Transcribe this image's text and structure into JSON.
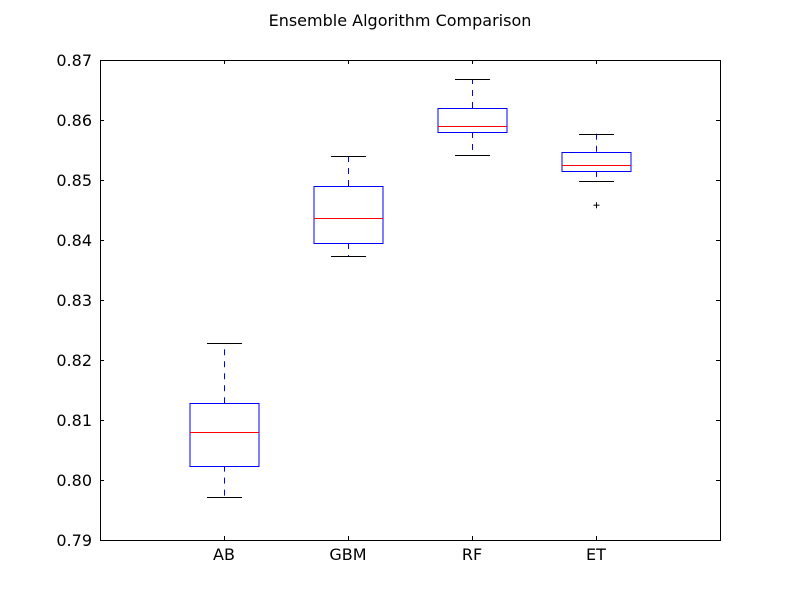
{
  "chart_data": {
    "type": "box",
    "title": "Ensemble Algorithm Comparison",
    "xlabel": "",
    "ylabel": "",
    "categories": [
      "AB",
      "GBM",
      "RF",
      "ET"
    ],
    "ylim": [
      0.79,
      0.87
    ],
    "yticks": [
      "0.79",
      "0.80",
      "0.81",
      "0.82",
      "0.83",
      "0.84",
      "0.85",
      "0.86",
      "0.87"
    ],
    "grid": false,
    "boxes": [
      {
        "name": "AB",
        "whisker_low": 0.7971,
        "q1": 0.8024,
        "median": 0.808,
        "q3": 0.8128,
        "whisker_high": 0.8228,
        "outliers": []
      },
      {
        "name": "GBM",
        "whisker_low": 0.8373,
        "q1": 0.8395,
        "median": 0.8436,
        "q3": 0.849,
        "whisker_high": 0.854,
        "outliers": []
      },
      {
        "name": "RF",
        "whisker_low": 0.8541,
        "q1": 0.858,
        "median": 0.859,
        "q3": 0.862,
        "whisker_high": 0.8668,
        "outliers": []
      },
      {
        "name": "ET",
        "whisker_low": 0.8498,
        "q1": 0.8515,
        "median": 0.8525,
        "q3": 0.8547,
        "whisker_high": 0.8577,
        "outliers": [
          0.8458
        ]
      }
    ],
    "colors": {
      "box": "#0000ff",
      "median": "#ff0000",
      "whisker": "#0000ff",
      "cap": "#000000",
      "flier": "#000000",
      "axes": "#000000"
    }
  }
}
